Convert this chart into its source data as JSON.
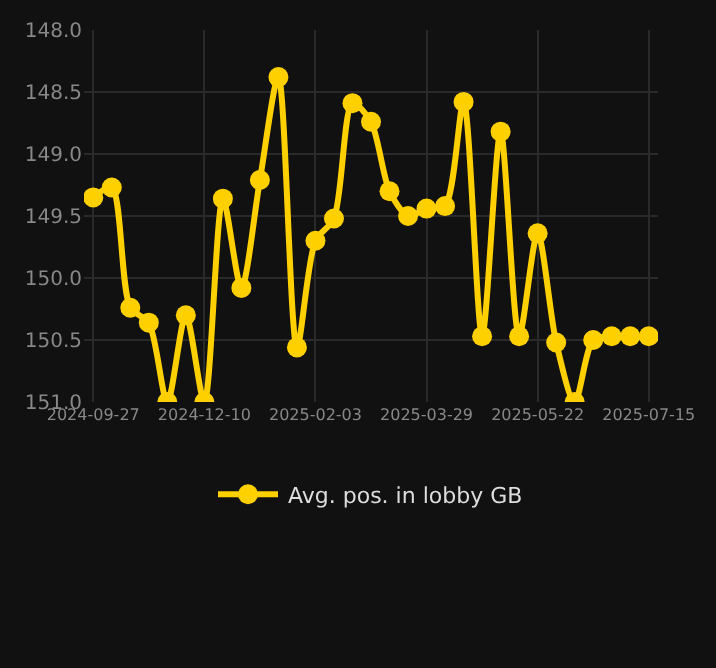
{
  "chart_data": {
    "type": "line",
    "categories": [
      "2024-09-27",
      null,
      null,
      null,
      null,
      null,
      "2024-12-10",
      null,
      null,
      null,
      null,
      null,
      "2025-02-03",
      null,
      null,
      null,
      null,
      null,
      "2025-03-29",
      null,
      null,
      null,
      null,
      null,
      "2025-05-22",
      null,
      null,
      null,
      null,
      null,
      "2025-07-15"
    ],
    "series": [
      {
        "name": "Avg. pos. in lobby GB",
        "color": "#ffd000",
        "values": [
          149.35,
          149.27,
          150.24,
          150.36,
          151.0,
          150.3,
          151.0,
          149.36,
          150.08,
          149.21,
          148.38,
          150.56,
          149.7,
          149.52,
          148.59,
          148.74,
          149.3,
          149.5,
          149.44,
          149.42,
          148.58,
          150.47,
          148.82,
          150.47,
          149.64,
          150.52,
          151.0,
          150.5,
          150.47,
          150.47,
          150.47
        ]
      }
    ],
    "ylim": [
      151.0,
      148.0
    ],
    "yticks": [
      {
        "value": 148.0,
        "label": "148.0"
      },
      {
        "value": 148.5,
        "label": "148.5"
      },
      {
        "value": 149.0,
        "label": "149.0"
      },
      {
        "value": 149.5,
        "label": "149.5"
      },
      {
        "value": 150.0,
        "label": "150.0"
      },
      {
        "value": 150.5,
        "label": "150.5"
      },
      {
        "value": 151.0,
        "label": "151.0"
      }
    ],
    "grid": true,
    "legend": "bottom",
    "marker": "circle",
    "line_style": "solid"
  }
}
